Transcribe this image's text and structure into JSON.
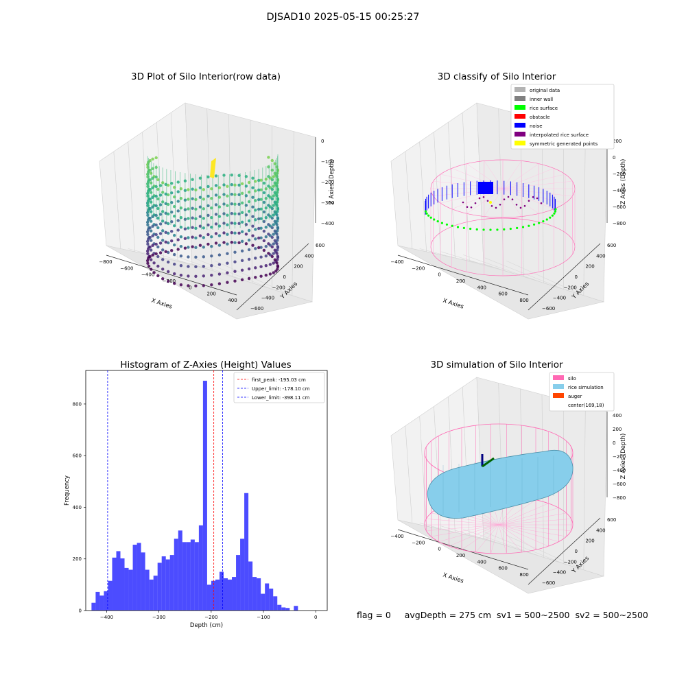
{
  "suptitle": "DJSAD10 2025-05-15 00:25:27",
  "panel1": {
    "title": "3D Plot of Silo Interior(row data)",
    "xlabel": "X Axies",
    "ylabel": "Y Axies",
    "zlabel": "Z Axies (Depth)",
    "xticks": [
      "−800",
      "−600",
      "−400",
      "−200",
      "0",
      "200",
      "400"
    ],
    "yticks": [
      "−600",
      "−400",
      "−200",
      "0",
      "200",
      "400",
      "600"
    ],
    "zticks": [
      "0",
      "−100",
      "−200",
      "−300",
      "−400"
    ]
  },
  "panel2": {
    "title": "3D classify of Silo Interior",
    "xlabel": "X Axies",
    "ylabel": "Y Axies",
    "zlabel": "Z Axies (Depth)",
    "xticks": [
      "−400",
      "−200",
      "0",
      "200",
      "400",
      "600",
      "800"
    ],
    "yticks": [
      "−600",
      "−400",
      "−200",
      "0",
      "200",
      "400",
      "600"
    ],
    "zticks": [
      "200",
      "0",
      "−200",
      "−400",
      "−600",
      "−800"
    ],
    "legend": [
      {
        "label": "original data",
        "color": "#b3b3b3"
      },
      {
        "label": "inner wall",
        "color": "#808080"
      },
      {
        "label": "rice surface",
        "color": "#00ff00"
      },
      {
        "label": "obstacle",
        "color": "#ff0000"
      },
      {
        "label": "noise",
        "color": "#0000ff"
      },
      {
        "label": "interpolated rice surface",
        "color": "#800080"
      },
      {
        "label": "symmetric generated points",
        "color": "#ffff00"
      }
    ]
  },
  "panel4": {
    "title": "3D simulation of Silo Interior",
    "xlabel": "X Axies",
    "ylabel": "Y Axies",
    "zlabel": "Z Axies (Depth)",
    "xticks": [
      "−400",
      "−200",
      "0",
      "200",
      "400",
      "600",
      "800"
    ],
    "yticks": [
      "−600",
      "−400",
      "−200",
      "0",
      "200",
      "400",
      "600"
    ],
    "zticks": [
      "400",
      "200",
      "0",
      "−200",
      "−400",
      "−600",
      "−800"
    ],
    "legend": [
      {
        "label": "silo",
        "color": "#ff69b4"
      },
      {
        "label": "rice simulation",
        "color": "#87ceeb"
      },
      {
        "label": "auger",
        "color": "#ff4500"
      },
      {
        "label": "center(169,18)",
        "color": "none"
      }
    ]
  },
  "chart_data": [
    {
      "type": "bar",
      "title": "Histogram of Z-Axies (Height) Values",
      "xlabel": "Depth (cm)",
      "ylabel": "Frequency",
      "xlim": [
        -440,
        22
      ],
      "ylim": [
        0,
        930
      ],
      "xticks": [
        -400,
        -300,
        -200,
        -100,
        0
      ],
      "yticks": [
        0,
        200,
        400,
        600,
        800
      ],
      "bar_color": "#0000ff",
      "bin_width": 7.9,
      "bin_start": -429,
      "values": [
        30,
        72,
        58,
        75,
        115,
        205,
        230,
        202,
        165,
        158,
        255,
        262,
        225,
        158,
        120,
        135,
        185,
        210,
        198,
        215,
        278,
        310,
        265,
        265,
        275,
        265,
        330,
        890,
        100,
        115,
        120,
        150,
        125,
        120,
        130,
        215,
        278,
        455,
        190,
        130,
        125,
        65,
        105,
        85,
        55,
        22,
        12,
        10,
        0,
        18
      ],
      "series": [
        {
          "name": "",
          "values": []
        }
      ],
      "vlines": [
        {
          "x": -195.03,
          "label": "first_peak: -195.03 cm",
          "color": "#ff0000"
        },
        {
          "x": -178.1,
          "label": "Upper_limit: -178.10 cm",
          "color": "#0000ff"
        },
        {
          "x": -398.11,
          "label": "Lower_limit: -398.11 cm",
          "color": "#0000ff"
        }
      ],
      "legend_position": "upper right"
    }
  ],
  "footer": {
    "flag": "flag = 0",
    "avg": "avgDepth = 275 cm",
    "sv1": "sv1 = 500~2500",
    "sv2": "sv2 = 500~2500"
  }
}
